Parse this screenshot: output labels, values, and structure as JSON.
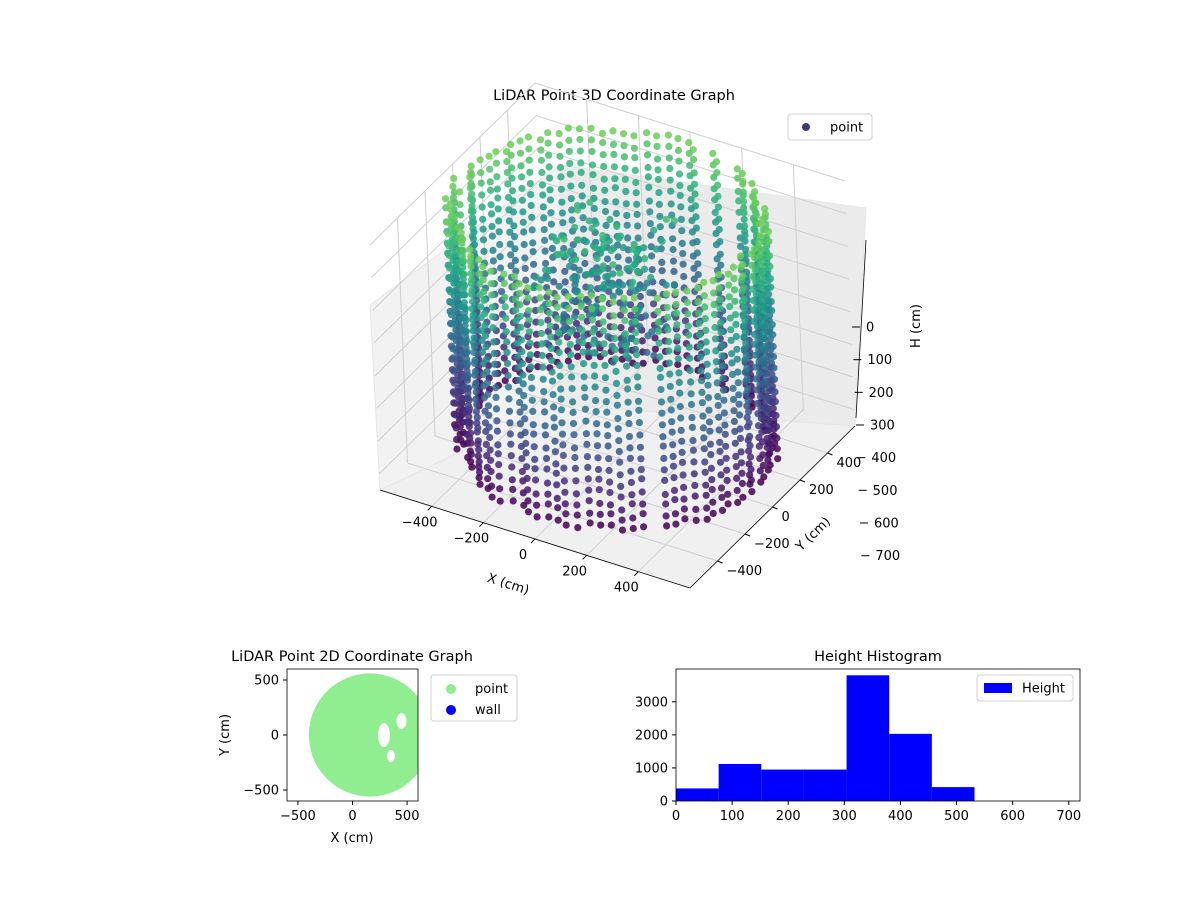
{
  "chart_data": [
    {
      "type": "scatter",
      "projection": "3d",
      "title": "LiDAR Point 3D Coordinate Graph",
      "xlabel": "X (cm)",
      "ylabel": "Y (cm)",
      "zlabel": "H (cm)",
      "xlim": [
        -600,
        600
      ],
      "ylim": [
        -600,
        600
      ],
      "zlim": [
        750,
        0
      ],
      "z_axis_inverted": true,
      "xticks": [
        -400,
        -200,
        0,
        200,
        400
      ],
      "yticks": [
        -400,
        -200,
        0,
        200,
        400
      ],
      "zticks": [
        0,
        100,
        200,
        300,
        400,
        500,
        600,
        700
      ],
      "xtick_labels": [
        "−400",
        "−200",
        "0",
        "200",
        "400"
      ],
      "ytick_labels": [
        "−400",
        "−200",
        "0",
        "200",
        "400"
      ],
      "ztick_labels": [
        "0",
        "100",
        "200",
        "300",
        "400",
        "500",
        "600",
        "700"
      ],
      "legend": {
        "entries": [
          "point"
        ],
        "placement": "upper-right"
      },
      "colormap": "viridis (color by height)",
      "shape": "cylindrical wall of points, radius about 560 cm, height 0-700 cm, plus an interior cluster",
      "series": [
        {
          "name": "point",
          "color": "#3b3a84",
          "wall_radius": 560,
          "height_range": [
            0,
            700
          ],
          "interior_cluster": {
            "x_range": [
              -250,
              150
            ],
            "y_range": [
              -150,
              250
            ],
            "height_range": [
              80,
              420
            ]
          }
        }
      ],
      "grid": true
    },
    {
      "type": "scatter",
      "title": "LiDAR Point 2D Coordinate Graph",
      "xlabel": "X (cm)",
      "ylabel": "Y (cm)",
      "xlim": [
        -600,
        600
      ],
      "ylim": [
        -600,
        600
      ],
      "xticks": [
        -500,
        0,
        500
      ],
      "yticks": [
        -500,
        0,
        500
      ],
      "xtick_labels": [
        "−500",
        "0",
        "500"
      ],
      "ytick_labels": [
        "−500",
        "0",
        "500"
      ],
      "legend": {
        "entries": [
          "point",
          "wall"
        ],
        "placement": "outside-right"
      },
      "series": [
        {
          "name": "point",
          "color": "#90ee90",
          "shape": "filled disc",
          "center": [
            160,
            0
          ],
          "radius": 560
        },
        {
          "name": "wall",
          "color": "#0000ff",
          "values": []
        }
      ],
      "grid": false
    },
    {
      "type": "bar",
      "subtype": "histogram",
      "title": "Height Histogram",
      "xlabel": "",
      "ylabel": "",
      "bin_edges": [
        0,
        76,
        152,
        228,
        304,
        380,
        456,
        532,
        608,
        684,
        720
      ],
      "values": [
        380,
        1120,
        950,
        950,
        3800,
        2030,
        420,
        0,
        0,
        0
      ],
      "xlim": [
        0,
        720
      ],
      "ylim": [
        0,
        3990
      ],
      "xticks": [
        0,
        100,
        200,
        300,
        400,
        500,
        600,
        700
      ],
      "yticks": [
        0,
        1000,
        2000,
        3000
      ],
      "legend": {
        "entries": [
          "Height"
        ],
        "placement": "upper-right"
      },
      "series": [
        {
          "name": "Height",
          "color": "#0000ff"
        }
      ],
      "grid": false
    }
  ]
}
